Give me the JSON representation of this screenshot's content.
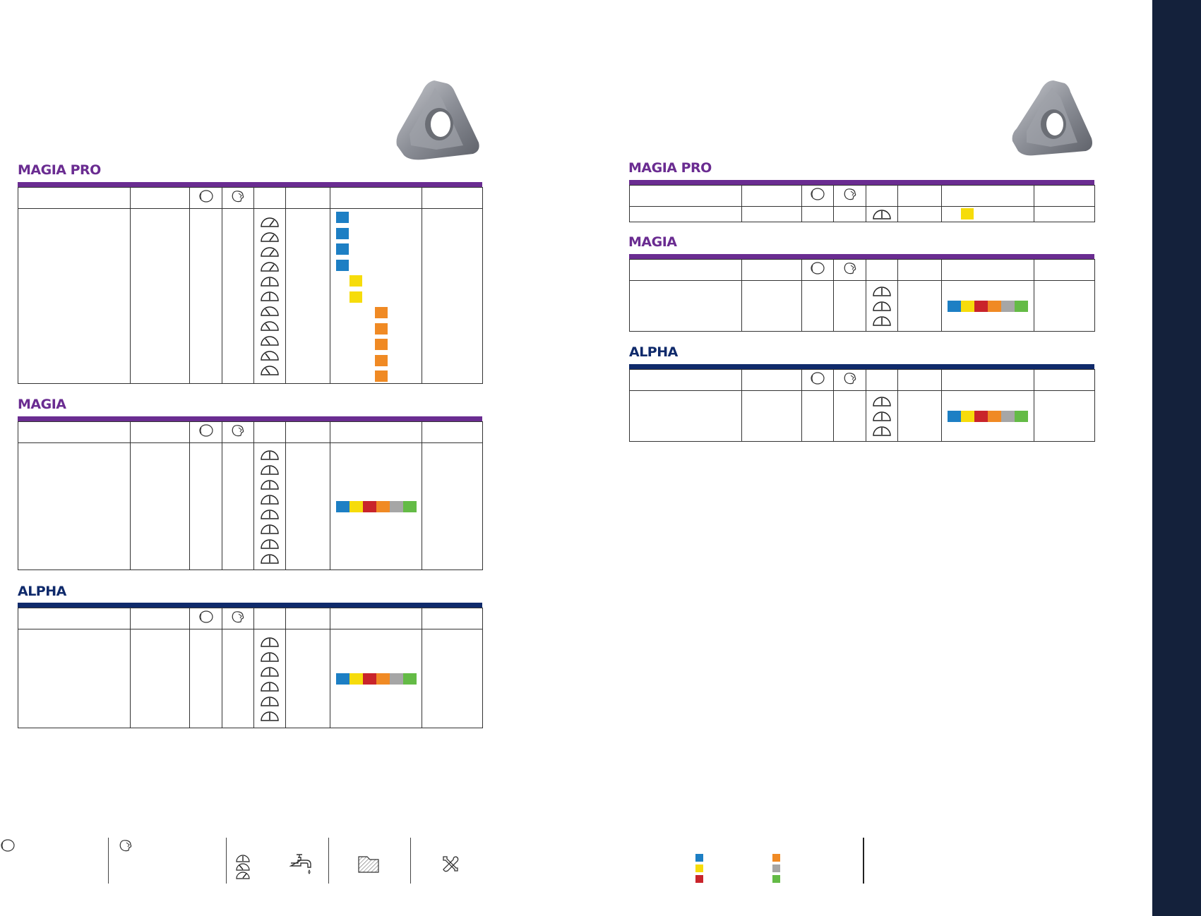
{
  "page_width": 1701,
  "page_height": 1298,
  "colors": {
    "purple": "#6a2c91",
    "navy": "#0f2a6b",
    "sidebar": "#14213b",
    "steel_blue": "#1d7fc4",
    "yellow": "#f6dc0b",
    "red": "#c9242b",
    "orange": "#f08a24",
    "grey": "#a6a6a6",
    "green": "#64bb46"
  },
  "left_page": {
    "sections": [
      {
        "title": "MAGIA PRO",
        "rows": 11,
        "squares": [
          "steel_blue",
          "steel_blue",
          "steel_blue",
          "steel_blue",
          "yellow",
          "yellow",
          "orange",
          "orange",
          "orange",
          "orange",
          "orange"
        ]
      },
      {
        "title": "MAGIA",
        "rows": 8,
        "strip": [
          "steel_blue",
          "yellow",
          "red",
          "orange",
          "grey",
          "green"
        ]
      },
      {
        "title": "ALPHA",
        "rows": 6,
        "strip": [
          "steel_blue",
          "yellow",
          "red",
          "orange",
          "grey",
          "green"
        ]
      }
    ]
  },
  "right_page": {
    "sections": [
      {
        "title": "MAGIA PRO",
        "rows": 1,
        "squares": [
          "yellow"
        ]
      },
      {
        "title": "MAGIA",
        "rows": 3,
        "strip": [
          "steel_blue",
          "yellow",
          "red",
          "orange",
          "grey",
          "green"
        ]
      },
      {
        "title": "ALPHA",
        "rows": 3,
        "strip": [
          "steel_blue",
          "yellow",
          "red",
          "orange",
          "grey",
          "green"
        ]
      }
    ]
  },
  "icons": [
    "round-insert-icon",
    "corner-insert-icon",
    "gauge-icon",
    "coolant-tap-icon",
    "workpiece-hatch-icon",
    "tools-icon"
  ]
}
